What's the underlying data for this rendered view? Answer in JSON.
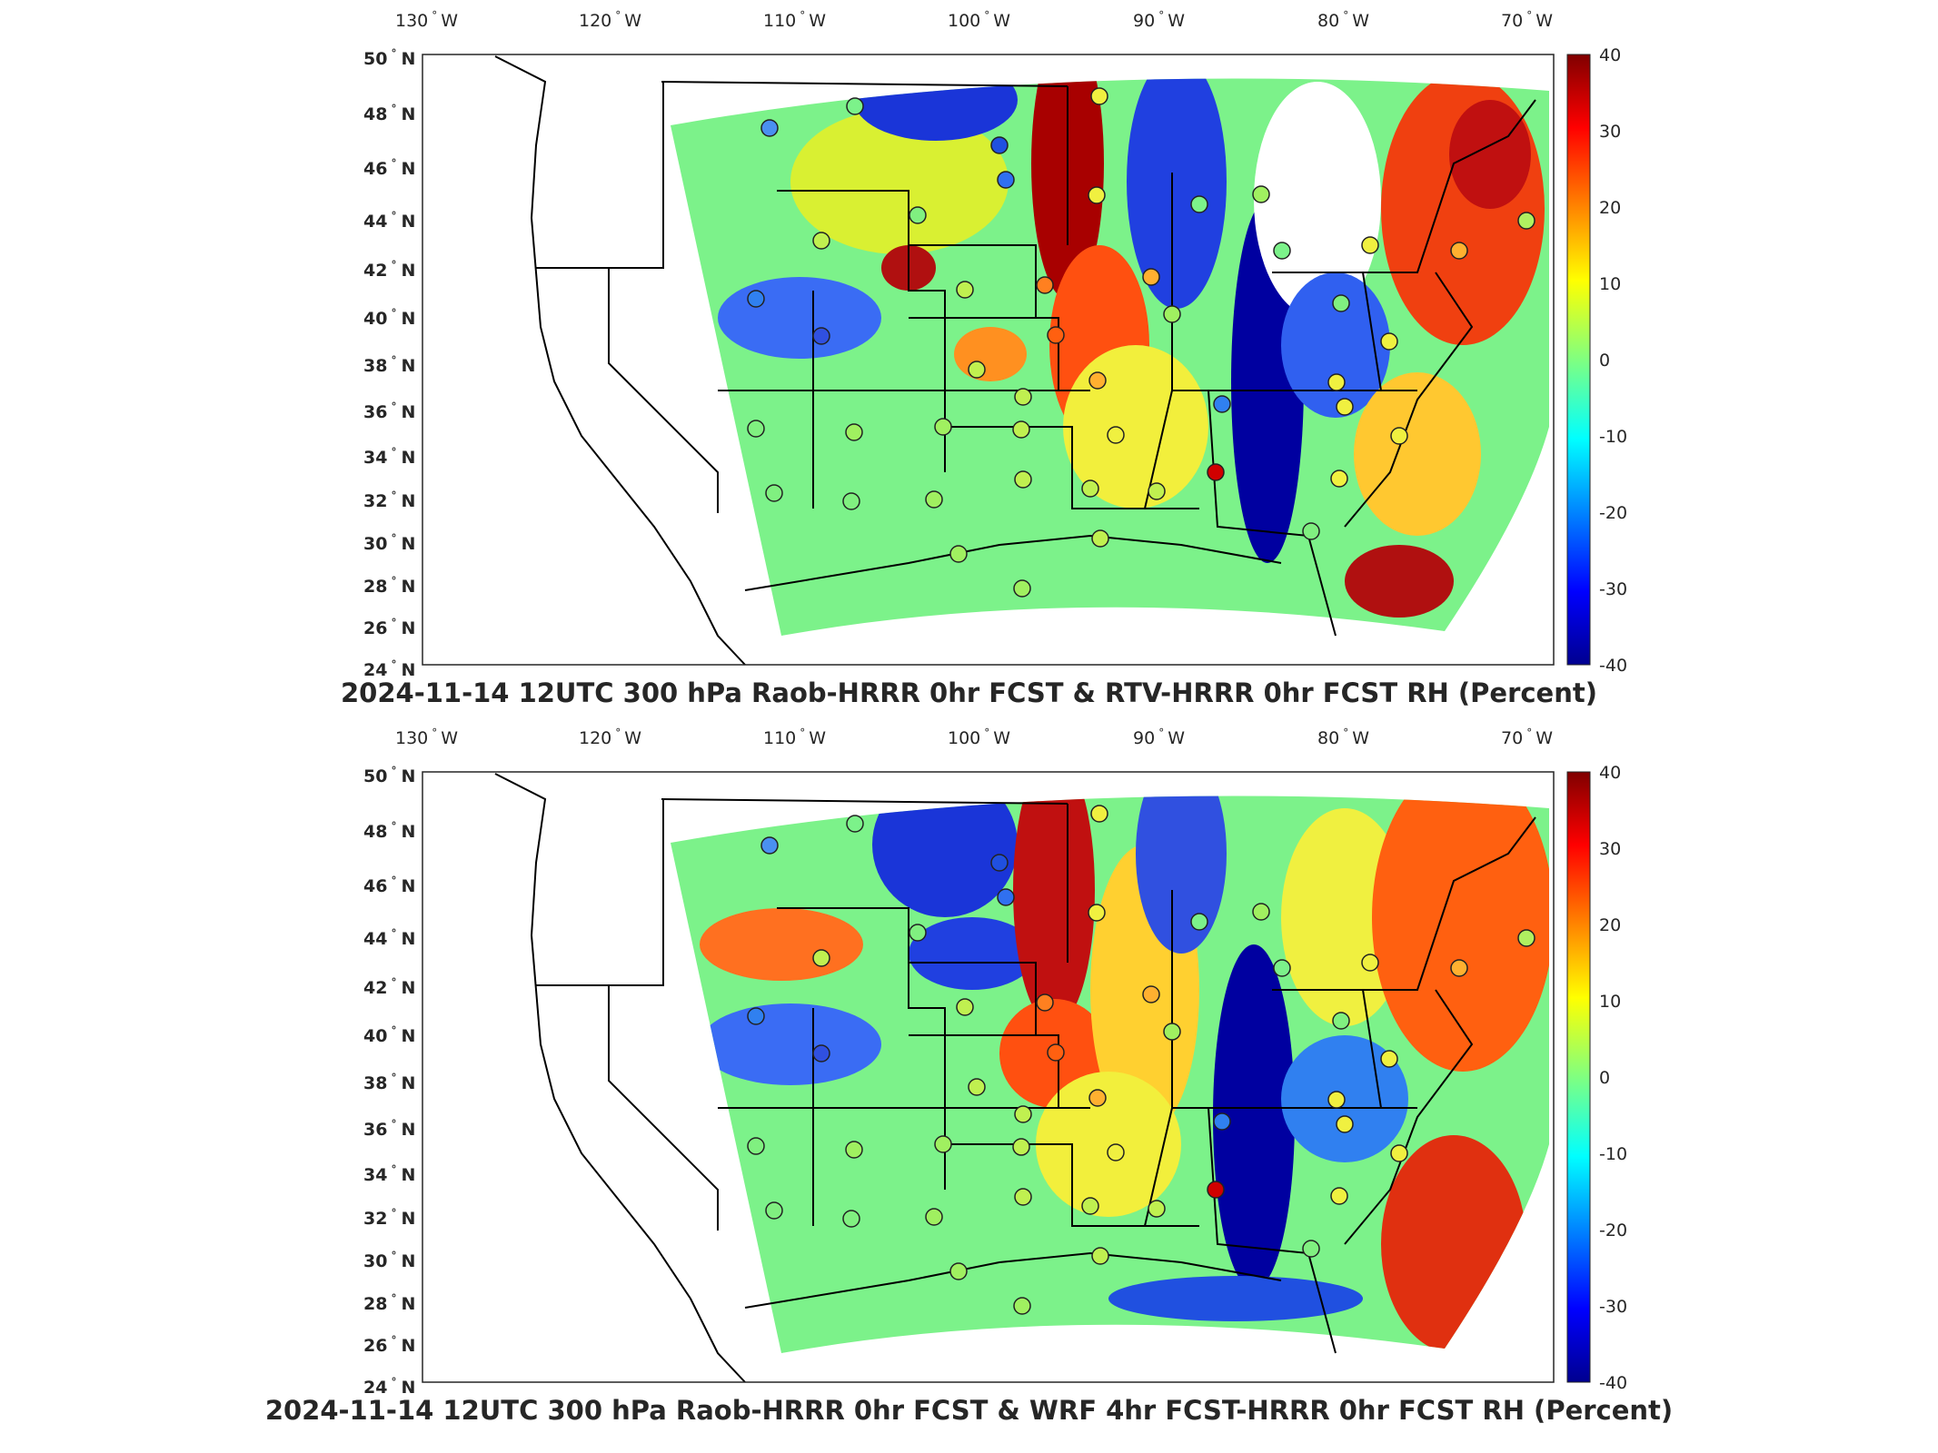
{
  "panels": [
    {
      "title": "2024-11-14 12UTC 300 hPa Raob-HRRR 0hr FCST & RTV-HRRR 0hr FCST RH (Percent)"
    },
    {
      "title": "2024-11-14 12UTC 300 hPa Raob-HRRR 0hr FCST & WRF 4hr FCST-HRRR 0hr FCST RH (Percent)"
    }
  ],
  "axes": {
    "lon_ticks": [
      {
        "deg": "130",
        "unit": "W"
      },
      {
        "deg": "120",
        "unit": "W"
      },
      {
        "deg": "110",
        "unit": "W"
      },
      {
        "deg": "100",
        "unit": "W"
      },
      {
        "deg": "90",
        "unit": "W"
      },
      {
        "deg": "80",
        "unit": "W"
      },
      {
        "deg": "70",
        "unit": "W"
      }
    ],
    "lat_ticks": [
      {
        "deg": "50",
        "unit": "N"
      },
      {
        "deg": "48",
        "unit": "N"
      },
      {
        "deg": "46",
        "unit": "N"
      },
      {
        "deg": "44",
        "unit": "N"
      },
      {
        "deg": "42",
        "unit": "N"
      },
      {
        "deg": "40",
        "unit": "N"
      },
      {
        "deg": "38",
        "unit": "N"
      },
      {
        "deg": "36",
        "unit": "N"
      },
      {
        "deg": "34",
        "unit": "N"
      },
      {
        "deg": "32",
        "unit": "N"
      },
      {
        "deg": "30",
        "unit": "N"
      },
      {
        "deg": "28",
        "unit": "N"
      },
      {
        "deg": "26",
        "unit": "N"
      },
      {
        "deg": "24",
        "unit": "N"
      }
    ],
    "degree_symbol": "°"
  },
  "colorbar": {
    "min": -40,
    "max": 40,
    "ticks": [
      "40",
      "30",
      "20",
      "10",
      "0",
      "-10",
      "-20",
      "-30",
      "-40"
    ],
    "colormap": "jet",
    "colors": [
      "#00008f",
      "#0000ff",
      "#00ffff",
      "#ffff00",
      "#ff0000",
      "#800000"
    ]
  },
  "map": {
    "projection": "lambert-conformal",
    "features": [
      "coastlines",
      "state-borders",
      "raob-station-markers"
    ],
    "background": "#ffffff",
    "border_color": "#000000"
  }
}
